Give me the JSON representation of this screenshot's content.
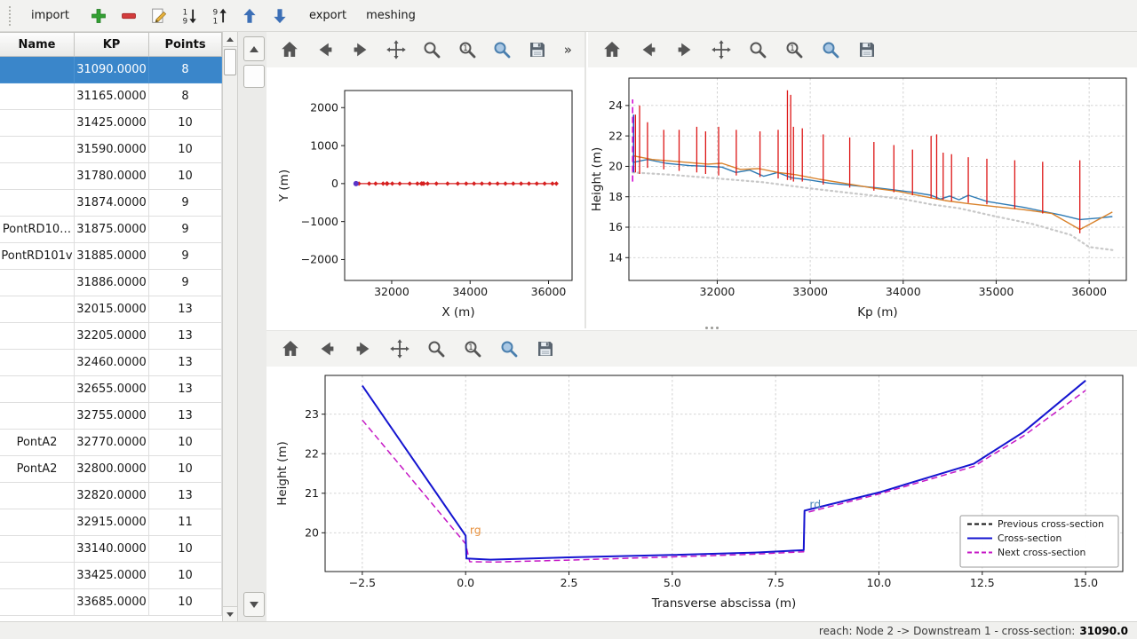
{
  "window": {
    "status_bar": {
      "reach_text": "reach: Node 2 -> Downstream 1 - cross-section:",
      "cross_section_value": "31090.0"
    }
  },
  "top_toolbar": {
    "import_label": "import",
    "export_label": "export",
    "meshing_label": "meshing",
    "icons": [
      {
        "name": "add-icon",
        "icon": "add"
      },
      {
        "name": "remove-icon",
        "icon": "remove"
      },
      {
        "name": "edit-icon",
        "icon": "edit"
      },
      {
        "name": "sort-descending-icon",
        "icon": "sort-desc"
      },
      {
        "name": "sort-ascending-icon",
        "icon": "sort-asc"
      },
      {
        "name": "move-up-icon",
        "icon": "arrow-up-blue"
      },
      {
        "name": "move-down-icon",
        "icon": "arrow-down-blue"
      }
    ]
  },
  "nav_toolbar": {
    "overflow_label": "»",
    "buttons": [
      {
        "name": "home-button",
        "icon": "home"
      },
      {
        "name": "back-button",
        "icon": "back"
      },
      {
        "name": "forward-button",
        "icon": "forward"
      },
      {
        "name": "pan-button",
        "icon": "pan"
      },
      {
        "name": "zoom-button",
        "icon": "zoom"
      },
      {
        "name": "zoom-to-one-button",
        "icon": "zoom-one"
      },
      {
        "name": "zoom-region-button",
        "icon": "zoom-blue"
      },
      {
        "name": "save-figure-button",
        "icon": "save"
      }
    ]
  },
  "table": {
    "columns": [
      "Name",
      "KP",
      "Points"
    ],
    "selected_index": 0,
    "rows": [
      {
        "name": "",
        "kp": "31090.0000",
        "points": "8"
      },
      {
        "name": "",
        "kp": "31165.0000",
        "points": "8"
      },
      {
        "name": "",
        "kp": "31425.0000",
        "points": "10"
      },
      {
        "name": "",
        "kp": "31590.0000",
        "points": "10"
      },
      {
        "name": "",
        "kp": "31780.0000",
        "points": "10"
      },
      {
        "name": "",
        "kp": "31874.0000",
        "points": "9"
      },
      {
        "name": "PontRD10…",
        "kp": "31875.0000",
        "points": "9"
      },
      {
        "name": "PontRD101v",
        "kp": "31885.0000",
        "points": "9"
      },
      {
        "name": "",
        "kp": "31886.0000",
        "points": "9"
      },
      {
        "name": "",
        "kp": "32015.0000",
        "points": "13"
      },
      {
        "name": "",
        "kp": "32205.0000",
        "points": "13"
      },
      {
        "name": "",
        "kp": "32460.0000",
        "points": "13"
      },
      {
        "name": "",
        "kp": "32655.0000",
        "points": "13"
      },
      {
        "name": "",
        "kp": "32755.0000",
        "points": "13"
      },
      {
        "name": "PontA2",
        "kp": "32770.0000",
        "points": "10"
      },
      {
        "name": "PontA2",
        "kp": "32800.0000",
        "points": "10"
      },
      {
        "name": "",
        "kp": "32820.0000",
        "points": "13"
      },
      {
        "name": "",
        "kp": "32915.0000",
        "points": "11"
      },
      {
        "name": "",
        "kp": "33140.0000",
        "points": "10"
      },
      {
        "name": "",
        "kp": "33425.0000",
        "points": "10"
      },
      {
        "name": "",
        "kp": "33685.0000",
        "points": "10"
      }
    ]
  },
  "chart_data": [
    {
      "id": "plan-view",
      "type": "line",
      "title": "",
      "xlabel": "X (m)",
      "ylabel": "Y (m)",
      "xlim": [
        30800,
        36600
      ],
      "ylim": [
        -2550,
        2450
      ],
      "xticks": [
        32000,
        34000,
        36000
      ],
      "xtick_labels": [
        "32000",
        "34000",
        "36000"
      ],
      "yticks": [
        -2000,
        -1000,
        0,
        1000,
        2000
      ],
      "ytick_labels": [
        "−2000",
        "−1000",
        "0",
        "1000",
        "2000"
      ],
      "grid": false,
      "series": [
        {
          "name": "river-axis",
          "color": "#d62020",
          "width": 1.2,
          "marker": "diamond",
          "marker_size": 2.6,
          "x": [
            31090,
            31165,
            31425,
            31590,
            31780,
            31874,
            31875,
            31885,
            31886,
            32015,
            32205,
            32460,
            32655,
            32755,
            32770,
            32800,
            32820,
            32915,
            33140,
            33425,
            33685,
            33900,
            34100,
            34300,
            34500,
            34700,
            34900,
            35100,
            35300,
            35500,
            35700,
            35900,
            36100,
            36200
          ],
          "y_const": 0
        },
        {
          "name": "upstream-point",
          "color": "#5a35c8",
          "width": 0,
          "marker": "circle",
          "marker_size": 3,
          "x": [
            31090
          ],
          "y_const": 0
        }
      ]
    },
    {
      "id": "longitudinal-profile",
      "type": "line",
      "title": "",
      "xlabel": "Kp (m)",
      "ylabel": "Height (m)",
      "xlim": [
        31050,
        36400
      ],
      "ylim": [
        12.5,
        25.8
      ],
      "xticks": [
        32000,
        33000,
        34000,
        35000,
        36000
      ],
      "xtick_labels": [
        "32000",
        "33000",
        "34000",
        "35000",
        "36000"
      ],
      "yticks": [
        14,
        16,
        18,
        20,
        22,
        24
      ],
      "ytick_labels": [
        "14",
        "16",
        "18",
        "20",
        "22",
        "24"
      ],
      "grid": true,
      "series": [
        {
          "name": "lowest-bed-dotted",
          "color": "#c8c8c8",
          "width": 2.2,
          "dash": "dot",
          "x": [
            31090,
            31500,
            32000,
            32500,
            33000,
            33500,
            34000,
            34300,
            34600,
            35000,
            35400,
            35800,
            36000,
            36250
          ],
          "y": [
            19.6,
            19.45,
            19.2,
            18.95,
            18.55,
            18.2,
            17.85,
            17.5,
            17.25,
            16.7,
            16.2,
            15.5,
            14.7,
            14.5
          ]
        },
        {
          "name": "left-bank-line",
          "color": "#2e7bb5",
          "width": 1.4,
          "x": [
            31090,
            31250,
            31450,
            31700,
            31900,
            32050,
            32200,
            32350,
            32500,
            32650,
            32800,
            33000,
            33200,
            33450,
            33700,
            33900,
            34100,
            34300,
            34400,
            34500,
            34600,
            34700,
            34900,
            35100,
            35300,
            35500,
            35700,
            35900,
            36100,
            36250
          ],
          "y": [
            20.25,
            20.45,
            20.2,
            20.05,
            20.0,
            19.95,
            19.6,
            19.75,
            19.35,
            19.6,
            19.25,
            19.1,
            18.9,
            18.75,
            18.6,
            18.45,
            18.3,
            18.1,
            17.85,
            18.05,
            17.8,
            18.1,
            17.7,
            17.5,
            17.3,
            17.05,
            16.8,
            16.5,
            16.6,
            16.7
          ]
        },
        {
          "name": "right-bank-line",
          "color": "#d9822b",
          "width": 1.4,
          "x": [
            31090,
            31300,
            31600,
            31900,
            32050,
            32250,
            32450,
            32650,
            32850,
            33100,
            33400,
            33700,
            33950,
            34200,
            34450,
            34700,
            35000,
            35300,
            35600,
            35900,
            36250
          ],
          "y": [
            20.7,
            20.45,
            20.3,
            20.15,
            20.2,
            19.8,
            19.85,
            19.6,
            19.45,
            19.15,
            18.85,
            18.55,
            18.35,
            18.05,
            17.75,
            17.55,
            17.35,
            17.15,
            16.9,
            15.85,
            17.0
          ]
        },
        {
          "name": "cross-section-bars",
          "type": "vlines",
          "color": "#dd1515",
          "width": 1.3,
          "segments": [
            [
              31120,
              19.6,
              23.4
            ],
            [
              31165,
              19.5,
              24.0
            ],
            [
              31250,
              19.9,
              22.9
            ],
            [
              31425,
              19.8,
              22.4
            ],
            [
              31590,
              19.7,
              22.4
            ],
            [
              31780,
              19.6,
              22.6
            ],
            [
              31875,
              19.5,
              22.3
            ],
            [
              32015,
              19.4,
              22.6
            ],
            [
              32205,
              19.4,
              22.4
            ],
            [
              32460,
              19.3,
              22.3
            ],
            [
              32655,
              19.2,
              22.4
            ],
            [
              32755,
              19.1,
              25.0
            ],
            [
              32790,
              19.1,
              24.7
            ],
            [
              32820,
              19.0,
              22.6
            ],
            [
              32915,
              19.0,
              22.5
            ],
            [
              33140,
              18.8,
              22.1
            ],
            [
              33425,
              18.6,
              21.9
            ],
            [
              33685,
              18.4,
              21.6
            ],
            [
              33900,
              18.3,
              21.4
            ],
            [
              34100,
              18.1,
              21.1
            ],
            [
              34300,
              17.9,
              22.0
            ],
            [
              34360,
              17.85,
              22.1
            ],
            [
              34430,
              17.8,
              20.9
            ],
            [
              34520,
              17.7,
              20.8
            ],
            [
              34700,
              17.6,
              20.6
            ],
            [
              34900,
              17.5,
              20.5
            ],
            [
              35200,
              17.2,
              20.4
            ],
            [
              35500,
              16.9,
              20.3
            ],
            [
              35900,
              15.6,
              20.4
            ]
          ]
        },
        {
          "name": "selected-section-marker",
          "type": "vline",
          "color": "#2843c8",
          "width": 1.5,
          "x": 31100,
          "y0": 19.6,
          "y1": 23.4
        },
        {
          "name": "current-position-marker",
          "type": "vline",
          "color": "#d000d0",
          "width": 1.5,
          "dash": "dash",
          "x": 31090,
          "y0": 19.0,
          "y1": 24.4
        }
      ]
    },
    {
      "id": "cross-section",
      "type": "line",
      "title": "",
      "xlabel": "Transverse abscissa (m)",
      "ylabel": "Height (m)",
      "xlim": [
        -3.4,
        15.9
      ],
      "ylim": [
        19.02,
        23.98
      ],
      "xticks": [
        -2.5,
        0,
        2.5,
        5,
        7.5,
        10,
        12.5,
        15
      ],
      "xtick_labels": [
        "−2.5",
        "0.0",
        "2.5",
        "5.0",
        "7.5",
        "10.0",
        "12.5",
        "15.0"
      ],
      "yticks": [
        20,
        21,
        22,
        23
      ],
      "ytick_labels": [
        "20",
        "21",
        "22",
        "23"
      ],
      "grid": true,
      "legend": {
        "location": "lower-right",
        "entries": [
          {
            "label": "Previous cross-section",
            "color": "#111111",
            "dash": "dash"
          },
          {
            "label": "Cross-section",
            "color": "#1515d0",
            "dash": "solid"
          },
          {
            "label": "Next cross-section",
            "color": "#c517c5",
            "dash": "dash"
          }
        ]
      },
      "annotations": [
        {
          "text": "rg",
          "x": 0.1,
          "y": 19.97,
          "color": "#e8923f"
        },
        {
          "text": "rd",
          "x": 8.32,
          "y": 20.62,
          "color": "#4886b8"
        }
      ],
      "series": [
        {
          "name": "previous-cross-section",
          "color": "#111111",
          "dash": "dash",
          "width": 1.6,
          "x": [],
          "y": []
        },
        {
          "name": "next-cross-section",
          "color": "#c517c5",
          "dash": "dash",
          "width": 1.5,
          "x": [
            -2.5,
            0.0,
            0.1,
            0.7,
            2.5,
            5.0,
            7.0,
            8.18,
            8.2,
            10.0,
            12.3,
            12.6,
            13.5,
            15.0
          ],
          "y": [
            22.85,
            19.72,
            19.27,
            19.26,
            19.31,
            19.39,
            19.46,
            19.52,
            20.5,
            20.98,
            21.68,
            21.88,
            22.45,
            23.6
          ]
        },
        {
          "name": "cross-section",
          "color": "#1515d0",
          "width": 2,
          "x": [
            -2.5,
            0.0,
            0.02,
            0.6,
            2.5,
            5.0,
            7.0,
            8.18,
            8.2,
            10.0,
            12.3,
            12.6,
            13.5,
            15.0
          ],
          "y": [
            23.72,
            19.93,
            19.35,
            19.32,
            19.38,
            19.44,
            19.5,
            19.56,
            20.56,
            21.02,
            21.75,
            21.95,
            22.55,
            23.85
          ]
        }
      ]
    }
  ]
}
